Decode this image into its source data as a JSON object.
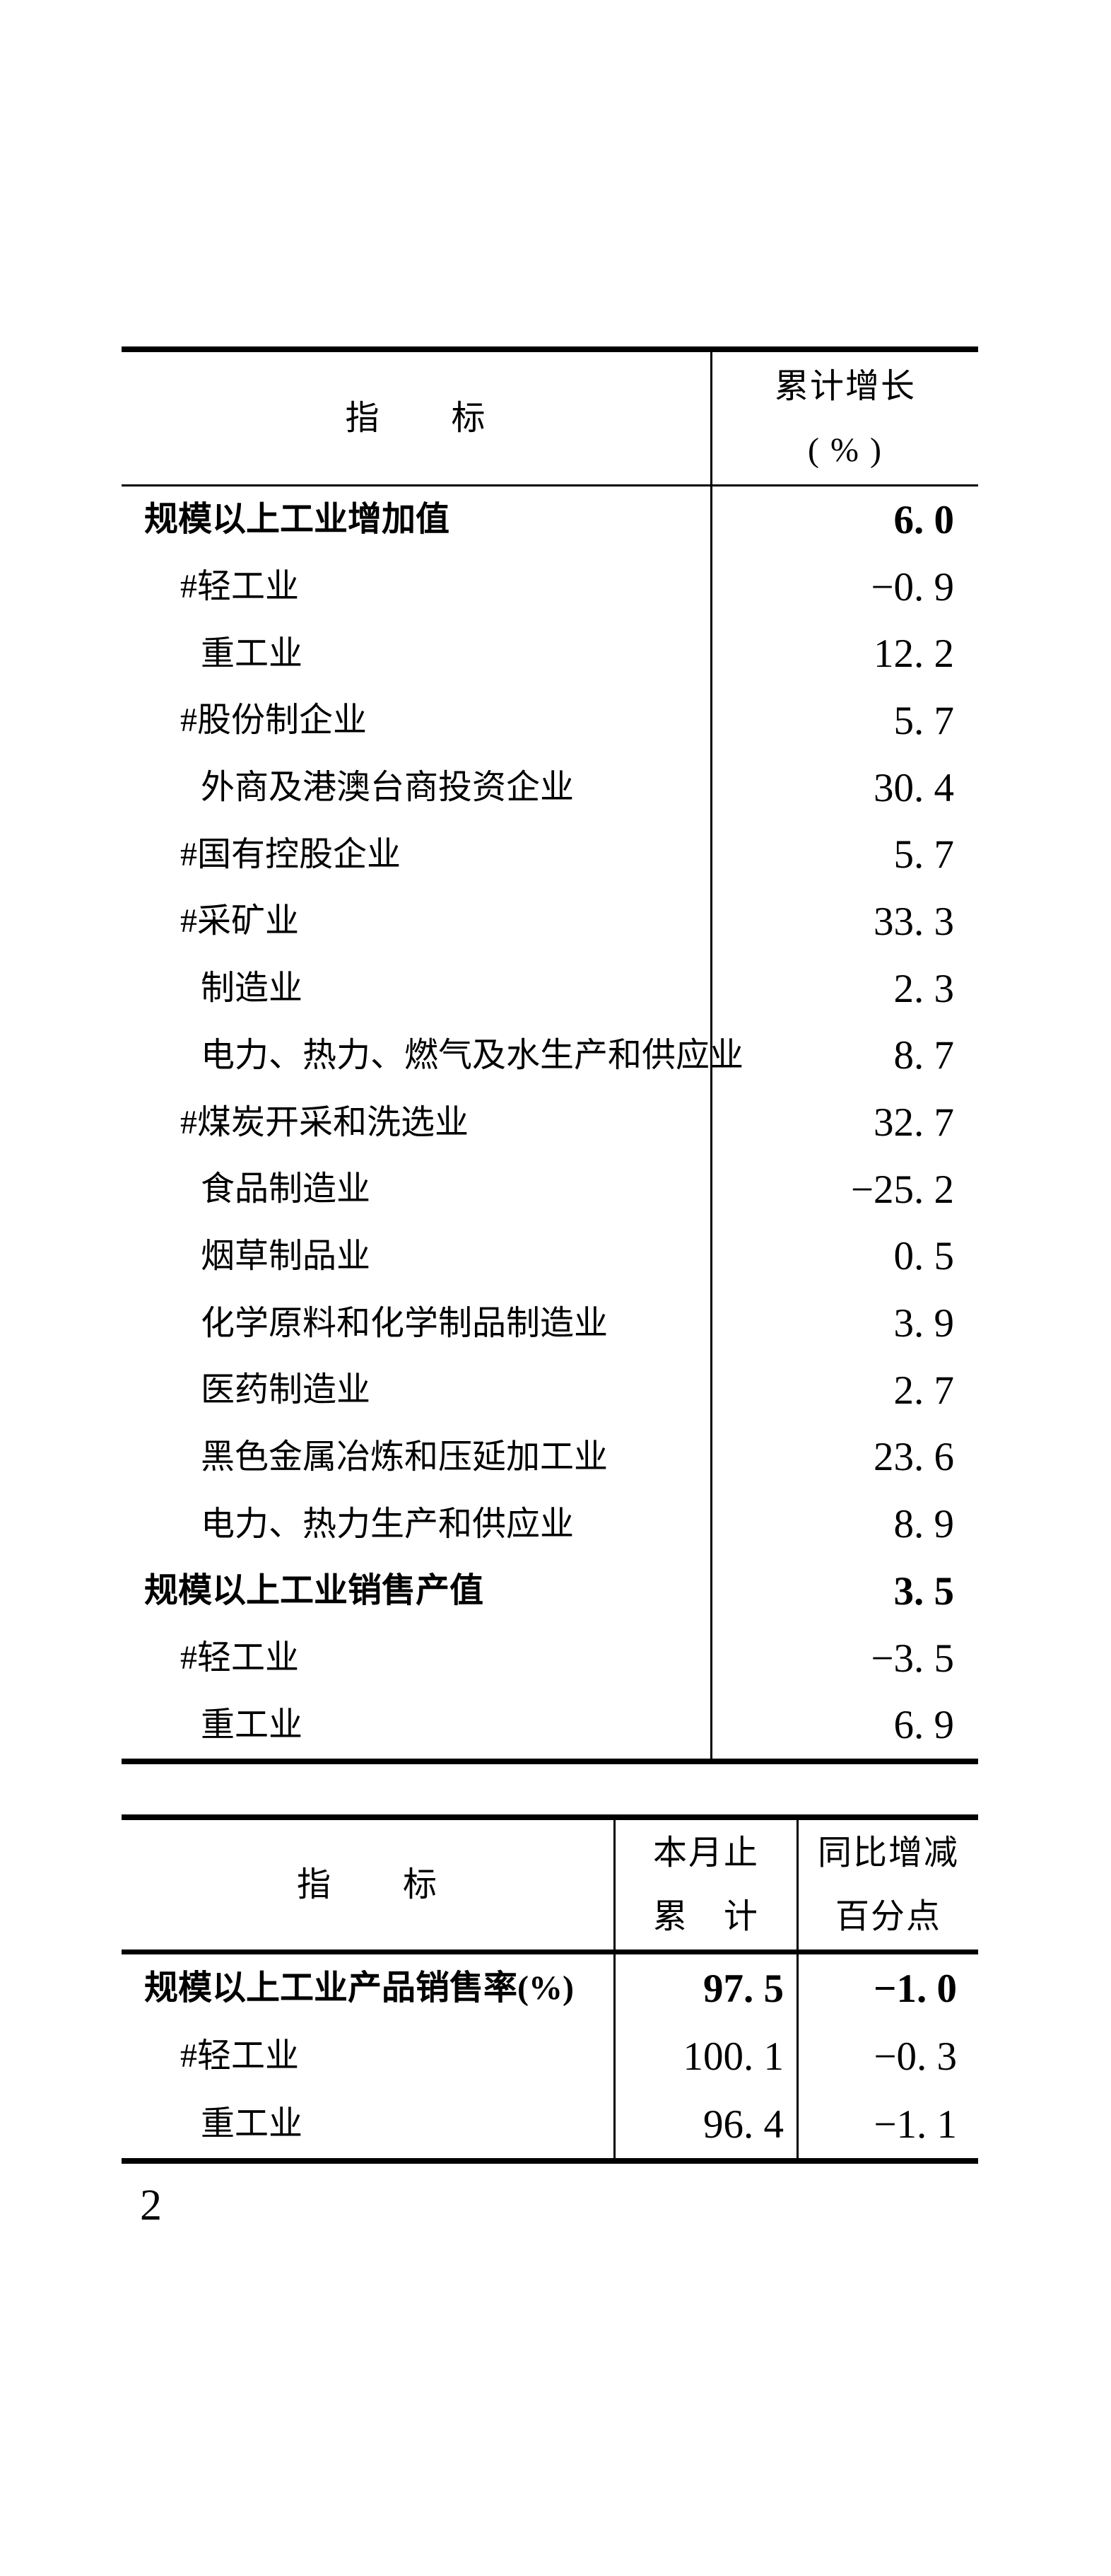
{
  "page": {
    "number": "2"
  },
  "colors": {
    "ink": "#000000",
    "paper": "#ffffff"
  },
  "table1": {
    "header": {
      "col1": "指　　标",
      "col2_line1": "累计增长",
      "col2_line2": "( % )"
    },
    "rows": [
      {
        "label": "规模以上工业增加值",
        "value": "6. 0",
        "indent": 0,
        "bold": true
      },
      {
        "label": "#轻工业",
        "value": "−0. 9",
        "indent": 1,
        "bold": false
      },
      {
        "label": "重工业",
        "value": "12. 2",
        "indent": 2,
        "bold": false
      },
      {
        "label": "#股份制企业",
        "value": "5. 7",
        "indent": 1,
        "bold": false
      },
      {
        "label": "外商及港澳台商投资企业",
        "value": "30. 4",
        "indent": 2,
        "bold": false
      },
      {
        "label": "#国有控股企业",
        "value": "5. 7",
        "indent": 1,
        "bold": false
      },
      {
        "label": "#采矿业",
        "value": "33. 3",
        "indent": 1,
        "bold": false
      },
      {
        "label": "制造业",
        "value": "2. 3",
        "indent": 2,
        "bold": false
      },
      {
        "label": "电力、热力、燃气及水生产和供应业",
        "value": "8. 7",
        "indent": 2,
        "bold": false
      },
      {
        "label": "#煤炭开采和洗选业",
        "value": "32. 7",
        "indent": 1,
        "bold": false
      },
      {
        "label": "食品制造业",
        "value": "−25. 2",
        "indent": 2,
        "bold": false
      },
      {
        "label": "烟草制品业",
        "value": "0. 5",
        "indent": 2,
        "bold": false
      },
      {
        "label": "化学原料和化学制品制造业",
        "value": "3. 9",
        "indent": 2,
        "bold": false
      },
      {
        "label": "医药制造业",
        "value": "2. 7",
        "indent": 2,
        "bold": false
      },
      {
        "label": "黑色金属冶炼和压延加工业",
        "value": "23. 6",
        "indent": 2,
        "bold": false
      },
      {
        "label": "电力、热力生产和供应业",
        "value": "8. 9",
        "indent": 2,
        "bold": false
      },
      {
        "label": "规模以上工业销售产值",
        "value": "3. 5",
        "indent": 0,
        "bold": true
      },
      {
        "label": "#轻工业",
        "value": "−3. 5",
        "indent": 1,
        "bold": false
      },
      {
        "label": "重工业",
        "value": "6. 9",
        "indent": 2,
        "bold": false
      }
    ]
  },
  "table2": {
    "header": {
      "col1": "指　　标",
      "col2_line1": "本月止",
      "col2_line2": "累　计",
      "col3_line1": "同比增减",
      "col3_line2": "百分点"
    },
    "rows": [
      {
        "label": "规模以上工业产品销售率(%)",
        "value1": "97. 5",
        "value2": "−1. 0",
        "indent": 0,
        "bold": true
      },
      {
        "label": "#轻工业",
        "value1": "100. 1",
        "value2": "−0. 3",
        "indent": 1,
        "bold": false
      },
      {
        "label": "重工业",
        "value1": "96. 4",
        "value2": "−1. 1",
        "indent": 2,
        "bold": false
      }
    ]
  }
}
